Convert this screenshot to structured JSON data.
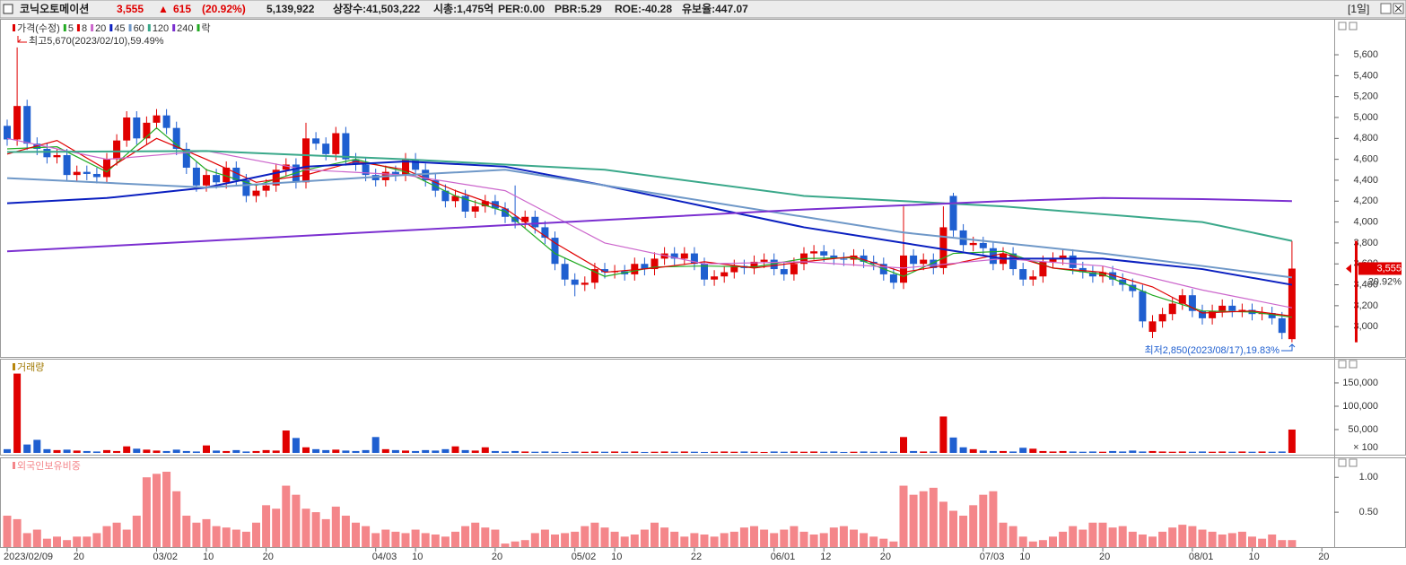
{
  "header": {
    "name": "코닉오토메이션",
    "price": "3,555",
    "arrow": "▲",
    "change": "615",
    "change_pct": "(20.92%)",
    "volume": "5,139,922",
    "listed": "상장수:41,503,222",
    "market_cap": "시총:1,475억",
    "per": "PER:0.00",
    "pbr": "PBR:5.29",
    "roe": "ROE:-40.28",
    "reserve": "유보율:447.07",
    "period": "[1일]"
  },
  "chart_data": [
    {
      "type": "candlestick",
      "name": "가격(수정)",
      "legend_extra": "락",
      "annotations": {
        "high": "최고5,670(2023/02/10),59.49%",
        "low": "최저2,850(2023/08/17),19.83%",
        "last_price": "3,555",
        "last_change": "20.92%"
      },
      "open": [
        4920,
        4790,
        5110,
        4750,
        4700,
        4620,
        4640,
        4450,
        4480,
        4460,
        4430,
        4600,
        4780,
        5000,
        4800,
        4950,
        5020,
        4900,
        4700,
        4520,
        4350,
        4450,
        4380,
        4520,
        4400,
        4250,
        4300,
        4350,
        4500,
        4550,
        4380,
        4800,
        4750,
        4650,
        4850,
        4600,
        4550,
        4450,
        4400,
        4480,
        4450,
        4600,
        4500,
        4400,
        4300,
        4200,
        4250,
        4100,
        4150,
        4200,
        4130,
        4050,
        4000,
        4050,
        3950,
        3850,
        3600,
        3450,
        3400,
        3420,
        3550,
        3520,
        3530,
        3500,
        3600,
        3550,
        3650,
        3700,
        3650,
        3700,
        3600,
        3450,
        3480,
        3520,
        3580,
        3560,
        3620,
        3640,
        3550,
        3500,
        3600,
        3700,
        3720,
        3680,
        3650,
        3640,
        3680,
        3620,
        3600,
        3500,
        3420,
        3680,
        3600,
        3640,
        3560,
        4250,
        3920,
        3780,
        3800,
        3750,
        3600,
        3700,
        3550,
        3450,
        3480,
        3620,
        3650,
        3680,
        3560,
        3520,
        3480,
        3520,
        3450,
        3400,
        3340,
        2950,
        3050,
        3120,
        3220,
        3300,
        3150,
        3080,
        3150,
        3200,
        3150,
        3160,
        3120,
        3130,
        3080,
        2880
      ],
      "high": [
        4980,
        5670,
        5170,
        4810,
        4760,
        4700,
        4700,
        4540,
        4540,
        4520,
        4660,
        4840,
        5060,
        5060,
        5010,
        5080,
        5080,
        4960,
        4760,
        4580,
        4510,
        4510,
        4580,
        4580,
        4460,
        4360,
        4410,
        4560,
        4610,
        4610,
        4950,
        4860,
        4810,
        4910,
        4910,
        4660,
        4610,
        4510,
        4540,
        4540,
        4660,
        4660,
        4560,
        4460,
        4360,
        4310,
        4310,
        4210,
        4260,
        4260,
        4190,
        4350,
        4110,
        4110,
        4010,
        3910,
        3660,
        3510,
        3480,
        3610,
        3610,
        3590,
        3590,
        3660,
        3660,
        3710,
        3760,
        3760,
        3760,
        3760,
        3660,
        3540,
        3580,
        3640,
        3640,
        3680,
        3700,
        3700,
        3610,
        3660,
        3760,
        3780,
        3780,
        3740,
        3710,
        3740,
        3740,
        3680,
        3660,
        3560,
        4150,
        3740,
        3700,
        3700,
        4150,
        4280,
        3980,
        3860,
        3860,
        3810,
        3760,
        3760,
        3610,
        3540,
        3680,
        3710,
        3740,
        3740,
        3620,
        3580,
        3580,
        3580,
        3510,
        3460,
        3400,
        3110,
        3180,
        3280,
        3360,
        3360,
        3210,
        3210,
        3260,
        3260,
        3220,
        3220,
        3190,
        3190,
        3140,
        3820
      ],
      "low": [
        4730,
        4730,
        4690,
        4640,
        4560,
        4560,
        4390,
        4390,
        4400,
        4370,
        4370,
        4540,
        4720,
        4740,
        4740,
        4890,
        4840,
        4640,
        4460,
        4290,
        4290,
        4320,
        4320,
        4340,
        4190,
        4190,
        4240,
        4290,
        4440,
        4320,
        4320,
        4690,
        4590,
        4590,
        4540,
        4490,
        4390,
        4340,
        4340,
        4390,
        4390,
        4440,
        4340,
        4240,
        4140,
        4140,
        4040,
        4040,
        4090,
        4070,
        3990,
        3940,
        3940,
        3890,
        3790,
        3540,
        3390,
        3290,
        3340,
        3360,
        3460,
        3460,
        3440,
        3440,
        3490,
        3490,
        3590,
        3590,
        3590,
        3540,
        3390,
        3390,
        3420,
        3460,
        3500,
        3500,
        3560,
        3490,
        3440,
        3440,
        3540,
        3640,
        3620,
        3590,
        3580,
        3580,
        3560,
        3540,
        3440,
        3360,
        3360,
        3540,
        3540,
        3500,
        3500,
        3860,
        3720,
        3720,
        3690,
        3540,
        3540,
        3490,
        3390,
        3390,
        3420,
        3560,
        3590,
        3500,
        3460,
        3420,
        3420,
        3390,
        3340,
        3280,
        2990,
        2890,
        2990,
        3060,
        3160,
        3090,
        3020,
        3020,
        3090,
        3090,
        3090,
        3060,
        3060,
        3020,
        2880,
        2850
      ],
      "close": [
        4790,
        5110,
        4750,
        4700,
        4620,
        4640,
        4450,
        4480,
        4460,
        4430,
        4600,
        4780,
        5000,
        4800,
        4950,
        5020,
        4900,
        4700,
        4520,
        4350,
        4450,
        4380,
        4520,
        4400,
        4250,
        4300,
        4350,
        4500,
        4550,
        4380,
        4800,
        4750,
        4650,
        4850,
        4600,
        4550,
        4450,
        4400,
        4480,
        4450,
        4600,
        4500,
        4400,
        4300,
        4200,
        4250,
        4100,
        4150,
        4200,
        4130,
        4050,
        4000,
        4050,
        3950,
        3850,
        3600,
        3450,
        3400,
        3420,
        3550,
        3520,
        3530,
        3500,
        3600,
        3550,
        3650,
        3700,
        3650,
        3700,
        3600,
        3450,
        3480,
        3520,
        3580,
        3560,
        3620,
        3640,
        3550,
        3500,
        3600,
        3700,
        3720,
        3680,
        3650,
        3640,
        3680,
        3620,
        3600,
        3500,
        3420,
        3680,
        3600,
        3640,
        3560,
        3950,
        3920,
        3780,
        3800,
        3750,
        3600,
        3700,
        3550,
        3450,
        3480,
        3620,
        3650,
        3680,
        3560,
        3520,
        3480,
        3520,
        3450,
        3400,
        3340,
        3050,
        3050,
        3120,
        3220,
        3300,
        3150,
        3080,
        3150,
        3200,
        3150,
        3160,
        3120,
        3130,
        3080,
        2940,
        3555
      ],
      "up_color": "#e00000",
      "down_color": "#1f5fd0",
      "ma": [
        {
          "name": "5",
          "color": "#22aa22",
          "x": [
            0,
            5,
            10,
            15,
            20,
            25,
            30,
            35,
            40,
            45,
            50,
            55,
            60,
            65,
            70,
            75,
            80,
            85,
            90,
            95,
            100,
            105,
            110,
            115,
            120,
            125,
            129
          ],
          "values": [
            4700,
            4720,
            4480,
            4900,
            4500,
            4350,
            4500,
            4600,
            4480,
            4250,
            4100,
            3700,
            3480,
            3570,
            3580,
            3570,
            3650,
            3660,
            3480,
            3700,
            3720,
            3560,
            3500,
            3300,
            3150,
            3140,
            3090
          ]
        },
        {
          "name": "8",
          "color": "#e00000",
          "x": [
            0,
            5,
            10,
            15,
            20,
            25,
            30,
            35,
            40,
            45,
            50,
            55,
            60,
            65,
            70,
            75,
            80,
            85,
            90,
            95,
            100,
            105,
            110,
            115,
            120,
            125,
            129
          ],
          "values": [
            4650,
            4780,
            4500,
            4800,
            4600,
            4380,
            4450,
            4580,
            4500,
            4300,
            4130,
            3800,
            3520,
            3560,
            3620,
            3560,
            3620,
            3670,
            3520,
            3600,
            3700,
            3560,
            3520,
            3380,
            3130,
            3150,
            3100
          ]
        },
        {
          "name": "20",
          "color": "#cc66cc",
          "x": [
            0,
            10,
            20,
            30,
            40,
            50,
            55,
            60,
            70,
            80,
            90,
            100,
            110,
            120,
            129
          ],
          "values": [
            4800,
            4600,
            4680,
            4500,
            4450,
            4300,
            4050,
            3800,
            3600,
            3620,
            3560,
            3650,
            3580,
            3350,
            3180
          ]
        },
        {
          "name": "45",
          "color": "#0a1fc0",
          "x": [
            0,
            10,
            20,
            30,
            40,
            50,
            60,
            70,
            80,
            90,
            100,
            110,
            120,
            129
          ],
          "values": [
            4180,
            4230,
            4330,
            4530,
            4580,
            4530,
            4350,
            4150,
            3950,
            3800,
            3650,
            3650,
            3550,
            3400
          ]
        },
        {
          "name": "60",
          "color": "#6f98c8",
          "x": [
            0,
            20,
            40,
            50,
            60,
            70,
            80,
            90,
            100,
            110,
            120,
            129
          ],
          "values": [
            4420,
            4330,
            4450,
            4500,
            4350,
            4200,
            4050,
            3900,
            3800,
            3700,
            3580,
            3470
          ]
        },
        {
          "name": "120",
          "color": "#3aa88a",
          "x": [
            0,
            20,
            40,
            60,
            80,
            100,
            120,
            129
          ],
          "values": [
            4670,
            4680,
            4600,
            4500,
            4250,
            4150,
            4000,
            3820
          ]
        },
        {
          "name": "240",
          "color": "#7b2fd0",
          "x": [
            0,
            20,
            40,
            60,
            80,
            100,
            110,
            120,
            129
          ],
          "values": [
            3720,
            3820,
            3920,
            4020,
            4120,
            4200,
            4230,
            4220,
            4200
          ]
        }
      ],
      "ylim": [
        2710,
        5935
      ],
      "yticks": [
        {
          "value": 3000,
          "label": "3,000"
        },
        {
          "value": 3200,
          "label": "3,200"
        },
        {
          "value": 3400,
          "label": "3,400"
        },
        {
          "value": 3600,
          "label": "3,600"
        },
        {
          "value": 3800,
          "label": "3,800"
        },
        {
          "value": 4000,
          "label": "4,000"
        },
        {
          "value": 4200,
          "label": "4,200"
        },
        {
          "value": 4400,
          "label": "4,400"
        },
        {
          "value": 4600,
          "label": "4,600"
        },
        {
          "value": 4800,
          "label": "4,800"
        },
        {
          "value": 5000,
          "label": "5,000"
        },
        {
          "value": 5200,
          "label": "5,200"
        },
        {
          "value": 5400,
          "label": "5,400"
        },
        {
          "value": 5600,
          "label": "5,600"
        }
      ],
      "xticks": [
        {
          "value": 0,
          "label": "2023/02/09"
        },
        {
          "value": 7,
          "label": "20"
        },
        {
          "value": 15,
          "label": "03/02"
        },
        {
          "value": 20,
          "label": "10"
        },
        {
          "value": 26,
          "label": "20"
        },
        {
          "value": 37,
          "label": "04/03"
        },
        {
          "value": 41,
          "label": "10"
        },
        {
          "value": 49,
          "label": "20"
        },
        {
          "value": 57,
          "label": "05/02"
        },
        {
          "value": 61,
          "label": "10"
        },
        {
          "value": 69,
          "label": "22"
        },
        {
          "value": 77,
          "label": "06/01"
        },
        {
          "value": 82,
          "label": "12"
        },
        {
          "value": 88,
          "label": "20"
        },
        {
          "value": 98,
          "label": "07/03"
        },
        {
          "value": 102,
          "label": "10"
        },
        {
          "value": 110,
          "label": "20"
        },
        {
          "value": 119,
          "label": "08/01"
        },
        {
          "value": 125,
          "label": "10"
        },
        {
          "value": 132,
          "label": "20"
        }
      ]
    },
    {
      "type": "bar",
      "name": "거래량",
      "unit_label": "× 100",
      "values": [
        8000,
        170000,
        18000,
        28000,
        8000,
        6000,
        7000,
        5000,
        4000,
        3000,
        6000,
        4000,
        14000,
        9000,
        7000,
        5000,
        4000,
        7000,
        4000,
        3000,
        16000,
        5000,
        4000,
        6000,
        3000,
        4000,
        6000,
        5000,
        48000,
        32000,
        12000,
        8000,
        6000,
        7000,
        5000,
        4000,
        6000,
        34000,
        8000,
        6000,
        5000,
        4000,
        6000,
        5000,
        8000,
        14000,
        6000,
        5000,
        12000,
        4000,
        3000,
        4000,
        3000,
        2500,
        3000,
        2500,
        2000,
        3000,
        2500,
        3000,
        2500,
        3000,
        2500,
        3000,
        2000,
        2500,
        3000,
        2500,
        3000,
        2500,
        2000,
        2500,
        3000,
        2500,
        3000,
        2500,
        2000,
        3000,
        2500,
        3000,
        2500,
        3000,
        2500,
        3000,
        2000,
        2500,
        3000,
        2500,
        3000,
        2500,
        34000,
        4000,
        3000,
        3000,
        78000,
        33000,
        12000,
        8000,
        5000,
        4000,
        4000,
        3000,
        11000,
        9000,
        4000,
        3000,
        4000,
        3000,
        2500,
        3000,
        2500,
        4000,
        3000,
        5000,
        3000,
        4000,
        3000,
        2500,
        3000,
        2500,
        3000,
        2500,
        3000,
        2500,
        3000,
        2500,
        3000,
        2500,
        3000,
        50000
      ],
      "ylim": [
        0,
        198000
      ],
      "yticks": [
        {
          "value": 50000,
          "label": "50,000"
        },
        {
          "value": 100000,
          "label": "100,000"
        },
        {
          "value": 150000,
          "label": "150,000"
        }
      ]
    },
    {
      "type": "bar",
      "name": "외국인보유비중",
      "color": "#f4868a",
      "values": [
        0.45,
        0.4,
        0.2,
        0.25,
        0.12,
        0.15,
        0.1,
        0.15,
        0.15,
        0.2,
        0.3,
        0.35,
        0.25,
        0.45,
        1.0,
        1.05,
        1.08,
        0.8,
        0.45,
        0.35,
        0.4,
        0.3,
        0.28,
        0.25,
        0.22,
        0.35,
        0.6,
        0.55,
        0.88,
        0.75,
        0.55,
        0.5,
        0.4,
        0.58,
        0.45,
        0.35,
        0.3,
        0.2,
        0.25,
        0.22,
        0.2,
        0.25,
        0.2,
        0.18,
        0.15,
        0.22,
        0.3,
        0.35,
        0.28,
        0.25,
        0.05,
        0.08,
        0.1,
        0.2,
        0.25,
        0.18,
        0.2,
        0.22,
        0.3,
        0.35,
        0.28,
        0.22,
        0.15,
        0.18,
        0.25,
        0.35,
        0.28,
        0.22,
        0.15,
        0.2,
        0.18,
        0.15,
        0.2,
        0.22,
        0.28,
        0.3,
        0.25,
        0.2,
        0.25,
        0.3,
        0.22,
        0.18,
        0.2,
        0.28,
        0.3,
        0.25,
        0.2,
        0.15,
        0.12,
        0.08,
        0.88,
        0.75,
        0.8,
        0.85,
        0.65,
        0.52,
        0.45,
        0.6,
        0.75,
        0.8,
        0.35,
        0.3,
        0.15,
        0.08,
        0.1,
        0.15,
        0.22,
        0.3,
        0.25,
        0.35,
        0.35,
        0.28,
        0.3,
        0.22,
        0.18,
        0.15,
        0.22,
        0.28,
        0.32,
        0.3,
        0.25,
        0.22,
        0.18,
        0.2,
        0.22,
        0.15,
        0.12,
        0.18,
        0.1,
        0.1
      ],
      "ylim": [
        0,
        1.26
      ],
      "yticks": [
        {
          "value": 0.5,
          "label": "0.50"
        },
        {
          "value": 1,
          "label": "1.00"
        }
      ]
    }
  ]
}
